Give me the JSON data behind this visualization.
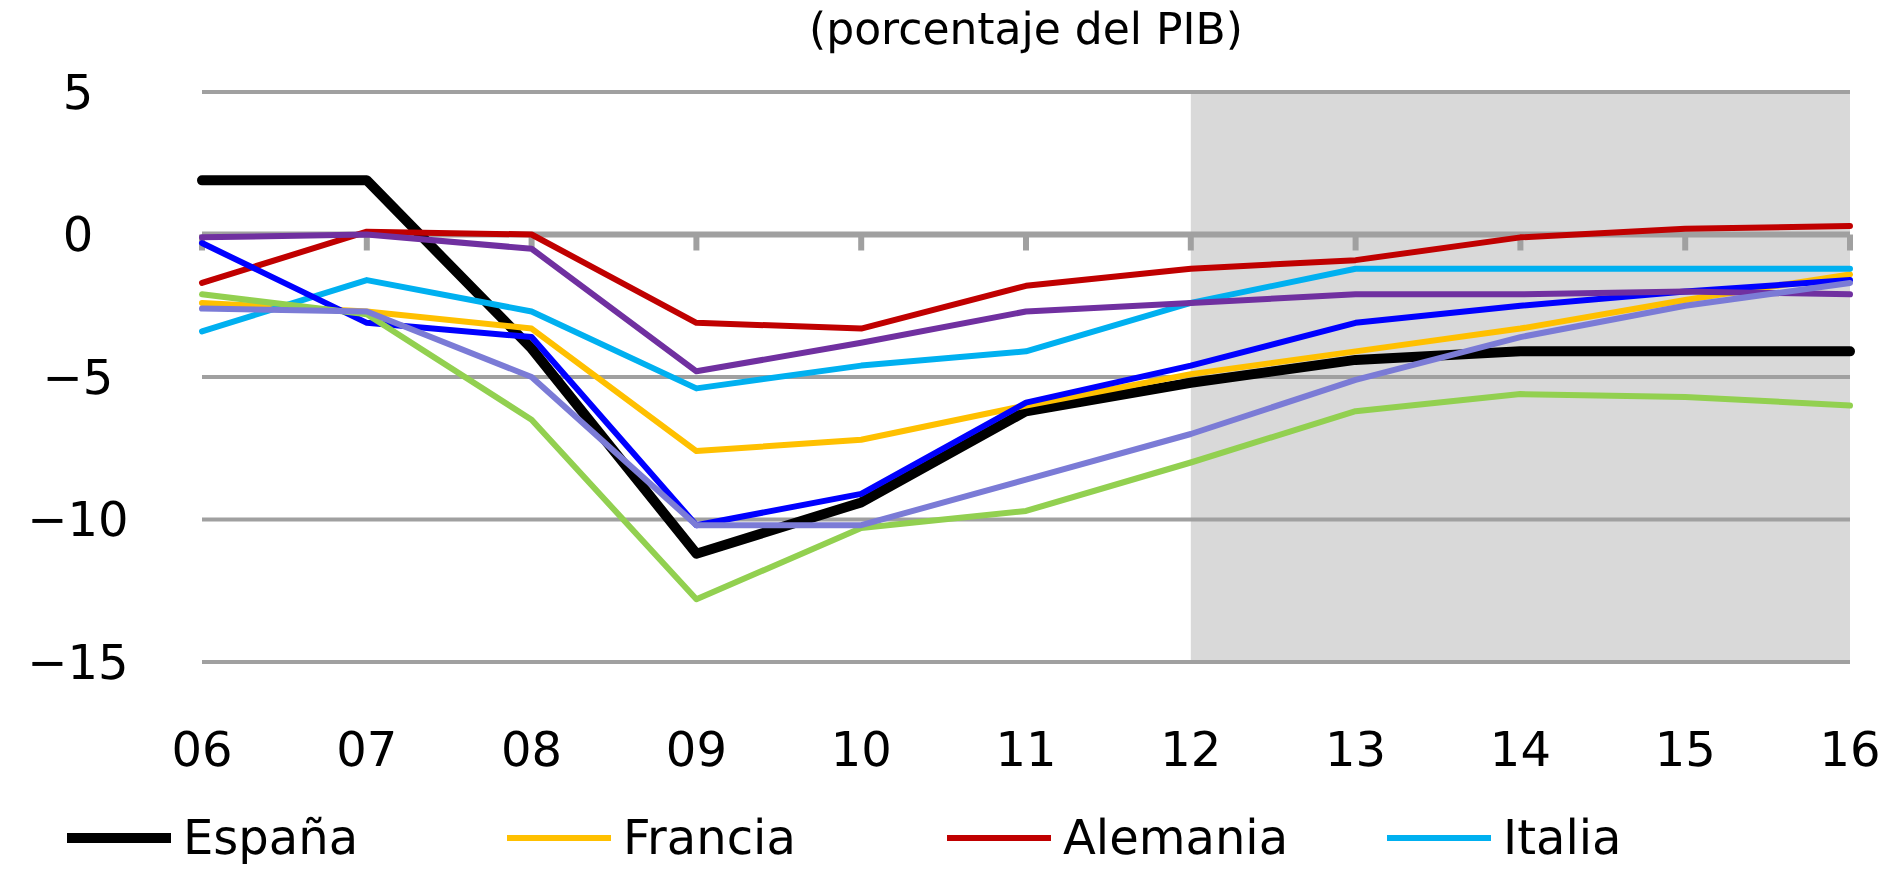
{
  "chart_data": {
    "type": "line",
    "subtitle": "(porcentaje del PIB)",
    "categories": [
      "06",
      "07",
      "08",
      "09",
      "10",
      "11",
      "12",
      "13",
      "14",
      "15",
      "16"
    ],
    "series": [
      {
        "name": "España",
        "color": "#000000",
        "values": [
          1.9,
          1.9,
          -4.0,
          -11.2,
          -9.4,
          -6.2,
          -5.2,
          -4.4,
          -4.1,
          -4.1,
          -4.1
        ]
      },
      {
        "name": "Francia",
        "color": "#ffc000",
        "values": [
          -2.4,
          -2.7,
          -3.3,
          -7.6,
          -7.2,
          -6.0,
          -4.9,
          -4.1,
          -3.3,
          -2.3,
          -1.4
        ]
      },
      {
        "name": "Alemania",
        "color": "#c00000",
        "values": [
          -1.7,
          0.1,
          0.0,
          -3.1,
          -3.3,
          -1.8,
          -1.2,
          -0.9,
          -0.1,
          0.2,
          0.3
        ]
      },
      {
        "name": "Italia",
        "color": "#00b0f0",
        "values": [
          -3.4,
          -1.6,
          -2.7,
          -5.4,
          -4.6,
          -4.1,
          -2.4,
          -1.2,
          -1.2,
          -1.2,
          -1.2
        ]
      },
      {
        "color": "#0000ff",
        "values": [
          -0.3,
          -3.1,
          -3.6,
          -10.2,
          -9.1,
          -5.9,
          -4.6,
          -3.1,
          -2.5,
          -2.0,
          -1.6
        ]
      },
      {
        "color": "#7030a0",
        "values": [
          -0.1,
          0.0,
          -0.5,
          -4.8,
          -3.8,
          -2.7,
          -2.4,
          -2.1,
          -2.1,
          -2.0,
          -2.1
        ]
      },
      {
        "color": "#92d050",
        "values": [
          -2.1,
          -2.8,
          -6.5,
          -12.8,
          -10.3,
          -9.7,
          -8.0,
          -6.2,
          -5.6,
          -5.7,
          -6.0
        ]
      },
      {
        "color": "#7b7bd6",
        "values": [
          -2.6,
          -2.7,
          -5.0,
          -10.2,
          -10.2,
          -8.6,
          -7.0,
          -5.1,
          -3.6,
          -2.5,
          -1.7
        ]
      }
    ],
    "ylim": [
      -15,
      5
    ],
    "yticks": [
      -15,
      -10,
      -5,
      0,
      5
    ],
    "grid": "y",
    "legend": "bottom",
    "line_style": "solid",
    "bands": [
      {
        "axis": "x",
        "from": "12",
        "to": "16",
        "color": "#d9d9d9"
      }
    ]
  }
}
